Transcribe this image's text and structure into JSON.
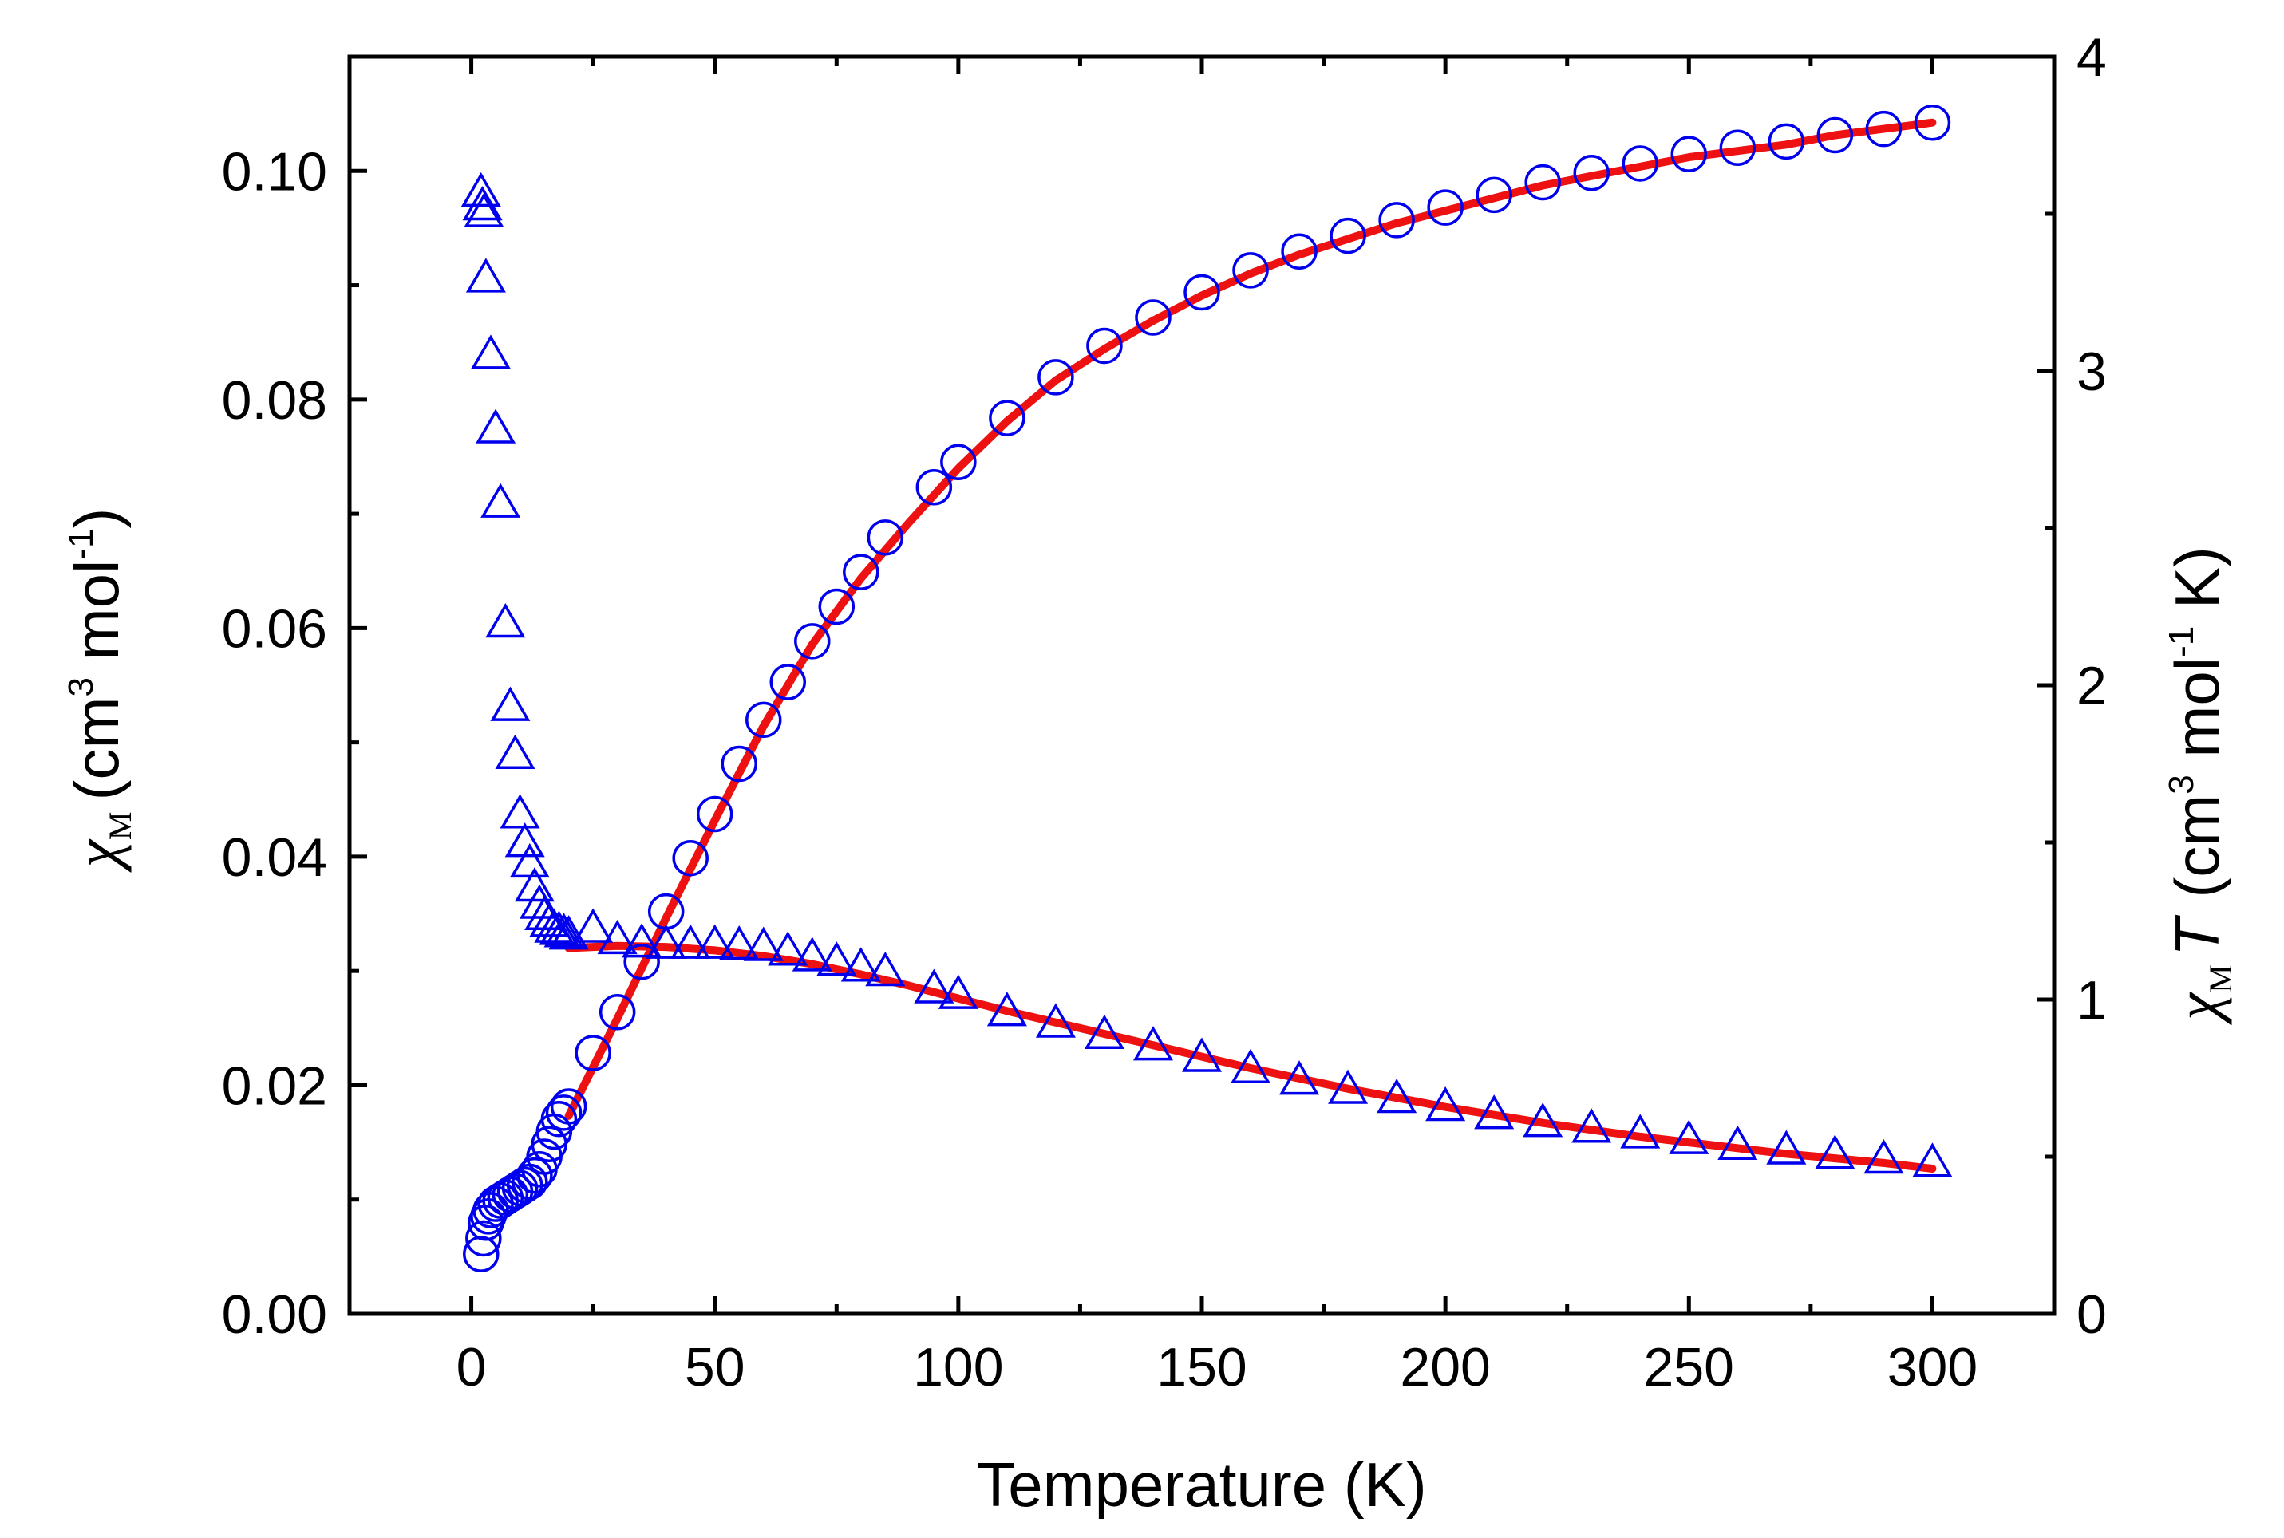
{
  "chart_data": {
    "type": "scatter",
    "xlabel": "Temperature (K)",
    "ylabel_left": {
      "symbol": "χ",
      "subscript": "M",
      "text": "(cm",
      "sup": "3",
      "text2": " mol",
      "sup2": "-1",
      "text3": ")"
    },
    "ylabel_right": {
      "symbol": "χ",
      "subscript": "M",
      "text": "T",
      "text2": " (cm",
      "sup": "3",
      "text3": " mol",
      "sup2": "-1",
      "text4": " K)"
    },
    "xlim": [
      -25,
      325
    ],
    "ylim_left": [
      0,
      0.11
    ],
    "ylim_right": [
      0,
      4
    ],
    "x_ticks": [
      "0",
      "50",
      "100",
      "150",
      "200",
      "250",
      "300"
    ],
    "y_left_ticks": [
      "0.00",
      "0.02",
      "0.04",
      "0.06",
      "0.08",
      "0.10"
    ],
    "y_right_ticks": [
      "0",
      "1",
      "2",
      "3",
      "4"
    ],
    "colors": {
      "markers": "#0000ee",
      "fit": "#ee1111",
      "axes": "#000000"
    },
    "series": [
      {
        "name": "chiM",
        "axis": "left",
        "marker": "triangle",
        "x": [
          2,
          2.3,
          2.6,
          3,
          4,
          5,
          6,
          7,
          8,
          9,
          10,
          11,
          12,
          13,
          14,
          15,
          16,
          17,
          18,
          19,
          20,
          25,
          30,
          35,
          40,
          45,
          50,
          55,
          60,
          65,
          70,
          75,
          80,
          85,
          95,
          100,
          110,
          120,
          130,
          140,
          150,
          160,
          170,
          180,
          190,
          200,
          210,
          220,
          230,
          240,
          250,
          260,
          270,
          280,
          290,
          300
        ],
        "y": [
          0.098,
          0.0968,
          0.0962,
          0.0905,
          0.0838,
          0.0773,
          0.0708,
          0.0603,
          0.053,
          0.0488,
          0.0436,
          0.0411,
          0.0393,
          0.0372,
          0.0357,
          0.0347,
          0.0341,
          0.0336,
          0.0334,
          0.0332,
          0.033,
          0.0336,
          0.0326,
          0.0323,
          0.0322,
          0.0322,
          0.0322,
          0.0321,
          0.032,
          0.0316,
          0.0311,
          0.0307,
          0.0302,
          0.0298,
          0.0283,
          0.0278,
          0.0263,
          0.0253,
          0.0243,
          0.0233,
          0.0223,
          0.0213,
          0.0203,
          0.0195,
          0.0187,
          0.018,
          0.0173,
          0.0166,
          0.0161,
          0.0156,
          0.0151,
          0.0146,
          0.0142,
          0.0138,
          0.0134,
          0.0131
        ]
      },
      {
        "name": "chiMT",
        "axis": "right",
        "marker": "circle",
        "x": [
          2,
          2.5,
          3,
          3.5,
          4,
          5,
          6,
          7,
          8,
          9,
          10,
          11,
          12,
          13,
          14,
          15,
          16,
          17,
          18,
          19,
          20,
          25,
          30,
          35,
          40,
          45,
          50,
          55,
          60,
          65,
          70,
          75,
          80,
          85,
          95,
          100,
          110,
          120,
          130,
          140,
          150,
          160,
          170,
          180,
          190,
          200,
          210,
          220,
          230,
          240,
          250,
          260,
          270,
          280,
          290,
          300
        ],
        "y": [
          0.19,
          0.24,
          0.29,
          0.31,
          0.33,
          0.35,
          0.36,
          0.37,
          0.38,
          0.39,
          0.4,
          0.41,
          0.42,
          0.44,
          0.46,
          0.5,
          0.54,
          0.58,
          0.62,
          0.64,
          0.66,
          0.83,
          0.96,
          1.12,
          1.28,
          1.45,
          1.59,
          1.75,
          1.89,
          2.01,
          2.14,
          2.25,
          2.36,
          2.47,
          2.63,
          2.71,
          2.85,
          2.98,
          3.08,
          3.17,
          3.25,
          3.32,
          3.38,
          3.43,
          3.48,
          3.52,
          3.56,
          3.6,
          3.63,
          3.66,
          3.69,
          3.71,
          3.73,
          3.75,
          3.77,
          3.79
        ]
      },
      {
        "name": "chiM fit",
        "axis": "left",
        "type": "line",
        "x": [
          20,
          30,
          40,
          50,
          60,
          70,
          80,
          90,
          100,
          110,
          120,
          130,
          140,
          150,
          160,
          170,
          180,
          190,
          200,
          210,
          220,
          230,
          240,
          250,
          260,
          270,
          280,
          290,
          300
        ],
        "y": [
          0.032,
          0.0322,
          0.0321,
          0.0318,
          0.0313,
          0.0306,
          0.0297,
          0.0287,
          0.0276,
          0.0265,
          0.0255,
          0.0245,
          0.0235,
          0.0225,
          0.0215,
          0.0206,
          0.0197,
          0.0189,
          0.0181,
          0.0174,
          0.0167,
          0.0161,
          0.0155,
          0.015,
          0.0145,
          0.014,
          0.0136,
          0.0132,
          0.0127
        ]
      },
      {
        "name": "chiMT fit",
        "axis": "right",
        "type": "line",
        "x": [
          20,
          30,
          40,
          50,
          60,
          70,
          80,
          90,
          100,
          110,
          120,
          130,
          140,
          150,
          160,
          170,
          180,
          190,
          200,
          210,
          220,
          230,
          240,
          250,
          260,
          270,
          280,
          290,
          300
        ],
        "y": [
          0.63,
          0.94,
          1.26,
          1.57,
          1.87,
          2.13,
          2.34,
          2.52,
          2.69,
          2.84,
          2.97,
          3.07,
          3.16,
          3.24,
          3.31,
          3.37,
          3.42,
          3.47,
          3.51,
          3.55,
          3.59,
          3.62,
          3.65,
          3.68,
          3.7,
          3.72,
          3.75,
          3.77,
          3.79
        ]
      }
    ]
  }
}
